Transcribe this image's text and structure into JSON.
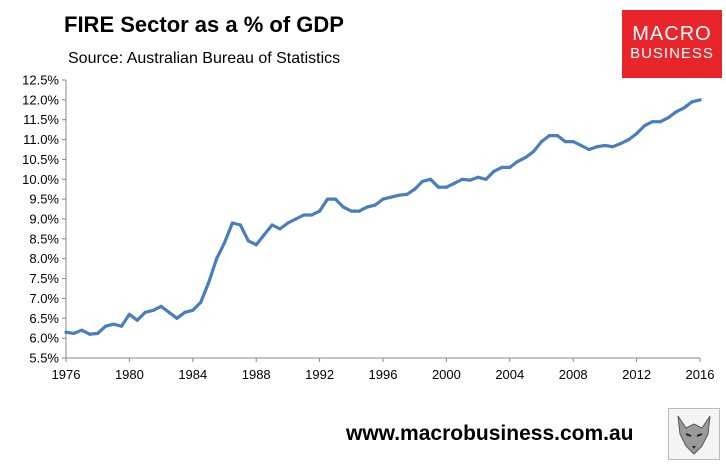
{
  "header": {
    "title": "FIRE Sector as a % of GDP",
    "subtitle": "Source: Australian Bureau of Statistics"
  },
  "logo": {
    "line1": "MACRO",
    "line2": "BUSINESS"
  },
  "footer": {
    "url": "www.macrobusiness.com.au"
  },
  "chart_data": {
    "type": "line",
    "title": "FIRE Sector as a % of GDP",
    "subtitle": "Source: Australian Bureau of Statistics",
    "xlabel": "",
    "ylabel": "",
    "xlim": [
      1976,
      2016
    ],
    "ylim": [
      5.5,
      12.5
    ],
    "grid": false,
    "legend": "none",
    "x_ticks": [
      {
        "value": 1976,
        "label": "1976"
      },
      {
        "value": 1980,
        "label": "1980"
      },
      {
        "value": 1984,
        "label": "1984"
      },
      {
        "value": 1988,
        "label": "1988"
      },
      {
        "value": 1992,
        "label": "1992"
      },
      {
        "value": 1996,
        "label": "1996"
      },
      {
        "value": 2000,
        "label": "2000"
      },
      {
        "value": 2004,
        "label": "2004"
      },
      {
        "value": 2008,
        "label": "2008"
      },
      {
        "value": 2012,
        "label": "2012"
      },
      {
        "value": 2016,
        "label": "2016"
      }
    ],
    "y_ticks": [
      {
        "value": 5.5,
        "label": "5.5%"
      },
      {
        "value": 6.0,
        "label": "6.0%"
      },
      {
        "value": 6.5,
        "label": "6.5%"
      },
      {
        "value": 7.0,
        "label": "7.0%"
      },
      {
        "value": 7.5,
        "label": "7.5%"
      },
      {
        "value": 8.0,
        "label": "8.0%"
      },
      {
        "value": 8.5,
        "label": "8.5%"
      },
      {
        "value": 9.0,
        "label": "9.0%"
      },
      {
        "value": 9.5,
        "label": "9.5%"
      },
      {
        "value": 10.0,
        "label": "10.0%"
      },
      {
        "value": 10.5,
        "label": "10.5%"
      },
      {
        "value": 11.0,
        "label": "11.0%"
      },
      {
        "value": 11.5,
        "label": "11.5%"
      },
      {
        "value": 12.0,
        "label": "12.0%"
      },
      {
        "value": 12.5,
        "label": "12.5%"
      }
    ],
    "series": [
      {
        "color": "#4a7ebb",
        "x": [
          1976.0,
          1976.5,
          1977.0,
          1977.5,
          1978.0,
          1978.5,
          1979.0,
          1979.5,
          1980.0,
          1980.5,
          1981.0,
          1981.5,
          1982.0,
          1982.5,
          1983.0,
          1983.5,
          1984.0,
          1984.5,
          1985.0,
          1985.5,
          1986.0,
          1986.5,
          1987.0,
          1987.5,
          1988.0,
          1988.5,
          1989.0,
          1989.5,
          1990.0,
          1990.5,
          1991.0,
          1991.5,
          1992.0,
          1992.5,
          1993.0,
          1993.5,
          1994.0,
          1994.5,
          1995.0,
          1995.5,
          1996.0,
          1996.5,
          1997.0,
          1997.5,
          1998.0,
          1998.5,
          1999.0,
          1999.5,
          2000.0,
          2000.5,
          2001.0,
          2001.5,
          2002.0,
          2002.5,
          2003.0,
          2003.5,
          2004.0,
          2004.5,
          2005.0,
          2005.5,
          2006.0,
          2006.5,
          2007.0,
          2007.5,
          2008.0,
          2008.5,
          2009.0,
          2009.5,
          2010.0,
          2010.5,
          2011.0,
          2011.5,
          2012.0,
          2012.5,
          2013.0,
          2013.5,
          2014.0,
          2014.5,
          2015.0,
          2015.5,
          2016.0
        ],
        "values": [
          6.15,
          6.12,
          6.2,
          6.1,
          6.12,
          6.3,
          6.35,
          6.3,
          6.6,
          6.45,
          6.65,
          6.7,
          6.8,
          6.65,
          6.5,
          6.65,
          6.7,
          6.9,
          7.4,
          8.0,
          8.4,
          8.9,
          8.85,
          8.45,
          8.35,
          8.6,
          8.85,
          8.75,
          8.9,
          9.0,
          9.1,
          9.1,
          9.2,
          9.5,
          9.5,
          9.3,
          9.2,
          9.2,
          9.3,
          9.35,
          9.5,
          9.55,
          9.6,
          9.62,
          9.75,
          9.95,
          10.0,
          9.8,
          9.8,
          9.9,
          10.0,
          9.98,
          10.05,
          10.0,
          10.2,
          10.3,
          10.3,
          10.45,
          10.55,
          10.7,
          10.95,
          11.1,
          11.1,
          10.95,
          10.95,
          10.85,
          10.75,
          10.82,
          10.85,
          10.82,
          10.9,
          11.0,
          11.15,
          11.35,
          11.45,
          11.45,
          11.55,
          11.7,
          11.8,
          11.95,
          12.0
        ]
      }
    ]
  }
}
